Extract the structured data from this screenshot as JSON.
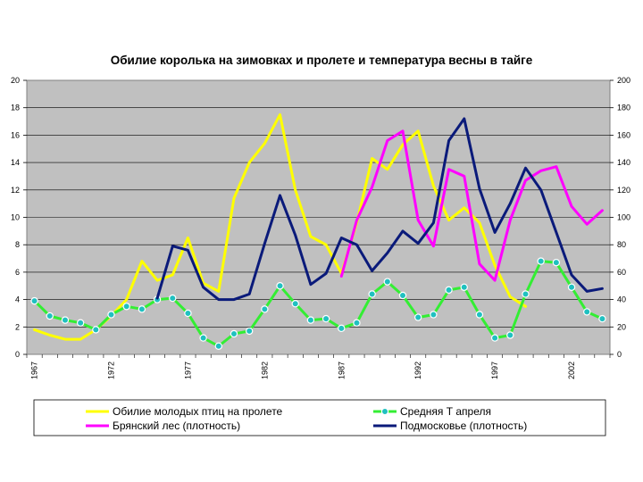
{
  "chart_data": {
    "type": "line",
    "title": "Обилие королька на зимовках и пролете и температура весны в тайге",
    "plot_background": "#c0c0c0",
    "grid": true,
    "legend_position": "bottom",
    "x": [
      1967,
      1968,
      1969,
      1970,
      1971,
      1972,
      1973,
      1974,
      1975,
      1976,
      1977,
      1978,
      1979,
      1980,
      1981,
      1982,
      1983,
      1984,
      1985,
      1986,
      1987,
      1988,
      1989,
      1990,
      1991,
      1992,
      1993,
      1994,
      1995,
      1996,
      1997,
      1998,
      1999,
      2000,
      2001,
      2002,
      2003,
      2004
    ],
    "x_tick_labels": [
      "1967",
      "1972",
      "1977",
      "1982",
      "1987",
      "1992",
      "1997",
      "2002"
    ],
    "x_tick_values": [
      1967,
      1972,
      1977,
      1982,
      1987,
      1992,
      1997,
      2002
    ],
    "y_left": {
      "lim": [
        0,
        20
      ],
      "ticks": [
        "0",
        "2",
        "4",
        "6",
        "8",
        "10",
        "12",
        "14",
        "16",
        "18",
        "20"
      ]
    },
    "y_right": {
      "lim": [
        0,
        200
      ],
      "ticks": [
        "0",
        "20",
        "40",
        "60",
        "80",
        "100",
        "120",
        "140",
        "160",
        "180",
        "200"
      ]
    },
    "series": [
      {
        "name": "Обилие молодых птиц на пролете",
        "color": "#ffff00",
        "axis": "left",
        "marker": false,
        "x": [
          1967,
          1968,
          1969,
          1970,
          1971,
          1972,
          1973,
          1974,
          1975,
          1976,
          1977,
          1978,
          1979,
          1980,
          1981,
          1982,
          1983,
          1984,
          1985,
          1986,
          1987,
          1988,
          1989,
          1990,
          1991,
          1992,
          1993,
          1994,
          1995,
          1996,
          1997,
          1998,
          1999
        ],
        "values": [
          1.8,
          1.4,
          1.1,
          1.1,
          1.8,
          2.8,
          4.0,
          6.8,
          5.4,
          5.8,
          8.5,
          5.2,
          4.6,
          11.4,
          14.0,
          15.4,
          17.5,
          12.0,
          8.6,
          8.0,
          5.9,
          9.6,
          14.3,
          13.5,
          15.3,
          16.3,
          12.3,
          9.8,
          10.7,
          9.6,
          6.5,
          4.2,
          3.5
        ]
      },
      {
        "name": "Средняя Т апреля",
        "color": "#33ee33",
        "axis": "left",
        "marker": true,
        "x": [
          1967,
          1968,
          1969,
          1970,
          1971,
          1972,
          1973,
          1974,
          1975,
          1976,
          1977,
          1978,
          1979,
          1980,
          1981,
          1982,
          1983,
          1984,
          1985,
          1986,
          1987,
          1988,
          1989,
          1990,
          1991,
          1992,
          1993,
          1994,
          1995,
          1996,
          1997,
          1998,
          1999,
          2000,
          2001,
          2002,
          2003,
          2004
        ],
        "values": [
          3.9,
          2.8,
          2.5,
          2.3,
          1.8,
          2.9,
          3.5,
          3.3,
          4.0,
          4.1,
          3.0,
          1.2,
          0.6,
          1.5,
          1.7,
          3.3,
          5.0,
          3.7,
          2.5,
          2.6,
          1.9,
          2.3,
          4.4,
          5.3,
          4.3,
          2.7,
          2.9,
          4.7,
          4.9,
          2.9,
          1.2,
          1.4,
          4.4,
          6.8,
          6.7,
          4.9,
          3.1,
          2.6
        ]
      },
      {
        "name": "Брянский лес (плотность)",
        "color": "#ff00ff",
        "axis": "right",
        "marker": false,
        "x": [
          1987,
          1988,
          1989,
          1990,
          1991,
          1992,
          1993,
          1994,
          1995,
          1996,
          1997,
          1998,
          1999,
          2000,
          2001,
          2002,
          2003,
          2004
        ],
        "values": [
          57,
          98,
          122,
          156,
          163,
          98,
          79,
          135,
          130,
          66,
          54,
          98,
          127,
          134,
          137,
          108,
          95,
          105
        ]
      },
      {
        "name": "Подмосковье (плотность)",
        "color": "#0a1a7a",
        "axis": "right",
        "marker": false,
        "x": [
          1975,
          1976,
          1977,
          1978,
          1979,
          1980,
          1981,
          1982,
          1983,
          1984,
          1985,
          1986,
          1987,
          1988,
          1989,
          1990,
          1991,
          1992,
          1993,
          1994,
          1995,
          1996,
          1997,
          1998,
          1999,
          2000,
          2001,
          2002,
          2003,
          2004
        ],
        "values": [
          41,
          79,
          76,
          49,
          40,
          40,
          44,
          81,
          116,
          87,
          51,
          59,
          85,
          80,
          61,
          74,
          90,
          81,
          96,
          156,
          172,
          121,
          89,
          110,
          136,
          120,
          89,
          58,
          46,
          48
        ]
      }
    ],
    "legend": [
      {
        "label": "Обилие молодых птиц на пролете",
        "color": "#ffff00",
        "marker": false
      },
      {
        "label": "Средняя Т апреля",
        "color": "#33ee33",
        "marker": true
      },
      {
        "label": "Брянский лес (плотность)",
        "color": "#ff00ff",
        "marker": false
      },
      {
        "label": "Подмосковье (плотность)",
        "color": "#0a1a7a",
        "marker": false
      }
    ]
  }
}
